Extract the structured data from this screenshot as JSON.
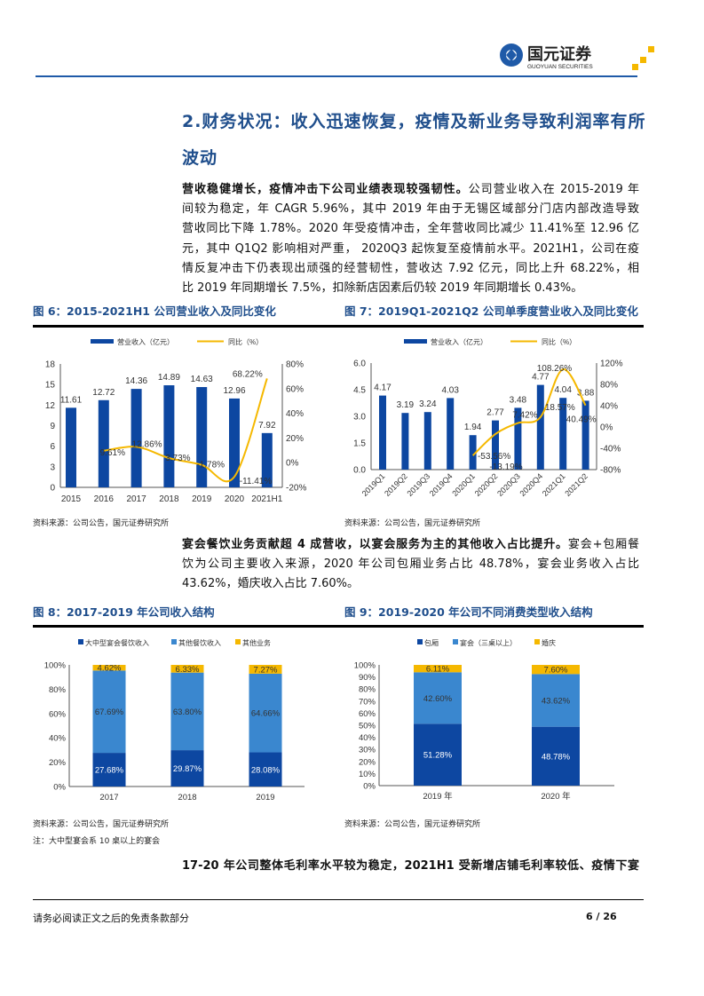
{
  "header": {
    "logo_cn": "国元证券",
    "logo_en": "GUOYUAN SECURITIES",
    "colors": {
      "blue": "#1f5aa8",
      "gold": "#f5b800"
    }
  },
  "section": {
    "title_line1": "2.财务状况：收入迅速恢复，疫情及新业务导致利润率有所",
    "title_line2": "波动"
  },
  "para1": {
    "lead": "营收稳健增长，疫情冲击下公司业绩表现较强韧性。",
    "lines": [
      "公司营业收入在 2015-2019 年",
      "间较为稳定，年 CAGR 5.96%，其中 2019 年由于无锡区域部分门店内部改造导致",
      "营收同比下降 1.78%。2020 年受疫情冲击，全年营收同比减少 11.41%至 12.96 亿",
      "元，其中 Q1Q2 影响相对严重， 2020Q3 起恢复至疫情前水平。2021H1，公司在疫",
      "情反复冲击下仍表现出顽强的经营韧性，营收达 7.92 亿元，同比上升 68.22%，相",
      "比 2019 年同期增长 7.5%，扣除新店因素后仍较 2019 年同期增长 0.43%。"
    ]
  },
  "para2": {
    "lead": "宴会餐饮业务贡献超 4 成营收，以宴会服务为主的其他收入占比提升。",
    "lines": [
      "宴会+包厢餐",
      "饮为公司主要收入来源，2020 年公司包厢业务占比 48.78%，宴会业务收入占比",
      "43.62%，婚庆收入占比 7.60%。"
    ]
  },
  "para3": {
    "lead": "17-20 年公司整体毛利率水平较为稳定，2021H1 受新增店铺毛利率较低、疫情下宴"
  },
  "source": "资料来源：公司公告，国元证券研究所",
  "note": "注：大中型宴会系 10 桌以上的宴会",
  "footer": {
    "disclaimer": "请务必阅读正文之后的免责条款部分",
    "page": "6 / 26"
  },
  "chart_data": [
    {
      "id": "fig6",
      "type": "bar+line",
      "title": "图 6：2015-2021H1 公司营业收入及同比变化",
      "legend": [
        "营业收入（亿元）",
        "同比（%）"
      ],
      "categories": [
        "2015",
        "2016",
        "2017",
        "2018",
        "2019",
        "2020",
        "2021H1"
      ],
      "bars": [
        11.61,
        12.72,
        14.36,
        14.89,
        14.63,
        12.96,
        7.92
      ],
      "bar_labels": [
        "11.61",
        "12.72",
        "14.36",
        "14.89",
        "14.63",
        "12.96",
        "7.92"
      ],
      "line": [
        null,
        9.61,
        12.86,
        3.73,
        -1.78,
        -11.41,
        68.22
      ],
      "line_labels": [
        "",
        "9.61%",
        "12.86%",
        "3.73%",
        "-1.78%",
        "-11.41%",
        "68.22%"
      ],
      "yleft": {
        "min": 0,
        "max": 18,
        "ticks": [
          "0",
          "3",
          "6",
          "9",
          "12",
          "15",
          "18"
        ]
      },
      "yright": {
        "min": -20,
        "max": 80,
        "ticks": [
          "-20%",
          "0%",
          "20%",
          "40%",
          "60%",
          "80%"
        ]
      }
    },
    {
      "id": "fig7",
      "type": "bar+line",
      "title": "图 7：2019Q1-2021Q2 公司单季度营业收入及同比变化",
      "legend": [
        "营业收入（亿元）",
        "同比（%）"
      ],
      "categories": [
        "2019Q1",
        "2019Q2",
        "2019Q3",
        "2019Q4",
        "2020Q1",
        "2020Q2",
        "2020Q3",
        "2020Q4",
        "2021Q1",
        "2021Q2"
      ],
      "bars": [
        4.17,
        3.19,
        3.24,
        4.03,
        1.94,
        2.77,
        3.48,
        4.77,
        4.04,
        3.88
      ],
      "bar_labels": [
        "4.17",
        "3.19",
        "3.24",
        "4.03",
        "1.94",
        "2.77",
        "3.48",
        "4.77",
        "4.04",
        "3.88"
      ],
      "line": [
        null,
        null,
        null,
        null,
        -53.56,
        -13.19,
        7.42,
        18.57,
        108.26,
        40.49
      ],
      "line_labels": [
        "",
        "",
        "",
        "",
        "-53.56%",
        "-13.19%",
        "7.42%",
        "18.57%",
        "108.26%",
        "40.49%"
      ],
      "yleft": {
        "min": 0,
        "max": 6,
        "ticks": [
          "0.0",
          "1.5",
          "3.0",
          "4.5",
          "6.0"
        ]
      },
      "yright": {
        "min": -80,
        "max": 120,
        "ticks": [
          "-80%",
          "-40%",
          "0%",
          "40%",
          "80%",
          "120%"
        ]
      }
    },
    {
      "id": "fig8",
      "type": "stacked-bar",
      "title": "图 8：2017-2019 年公司收入结构",
      "categories": [
        "2017",
        "2018",
        "2019"
      ],
      "series": [
        {
          "name": "大中型宴会餐饮收入",
          "values": [
            27.68,
            29.87,
            28.08
          ],
          "labels": [
            "27.68%",
            "29.87%",
            "28.08%"
          ]
        },
        {
          "name": "其他餐饮收入",
          "values": [
            67.69,
            63.8,
            64.66
          ],
          "labels": [
            "67.69%",
            "63.80%",
            "64.66%"
          ]
        },
        {
          "name": "其他业务",
          "values": [
            4.62,
            6.33,
            7.27
          ],
          "labels": [
            "4.62%",
            "6.33%",
            "7.27%"
          ]
        }
      ],
      "ticks": [
        "0%",
        "20%",
        "40%",
        "60%",
        "80%",
        "100%"
      ]
    },
    {
      "id": "fig9",
      "type": "stacked-bar",
      "title": "图 9：2019-2020 年公司不同消费类型收入结构",
      "categories": [
        "2019 年",
        "2020 年"
      ],
      "series": [
        {
          "name": "包厢",
          "values": [
            51.28,
            48.78
          ],
          "labels": [
            "51.28%",
            "48.78%"
          ]
        },
        {
          "name": "宴会（三桌以上）",
          "values": [
            42.6,
            43.62
          ],
          "labels": [
            "42.60%",
            "43.62%"
          ]
        },
        {
          "name": "婚庆",
          "values": [
            6.11,
            7.6
          ],
          "labels": [
            "6.11%",
            "7.60%"
          ]
        }
      ],
      "ticks": [
        "0%",
        "10%",
        "20%",
        "30%",
        "40%",
        "50%",
        "60%",
        "70%",
        "80%",
        "90%",
        "100%"
      ]
    }
  ]
}
